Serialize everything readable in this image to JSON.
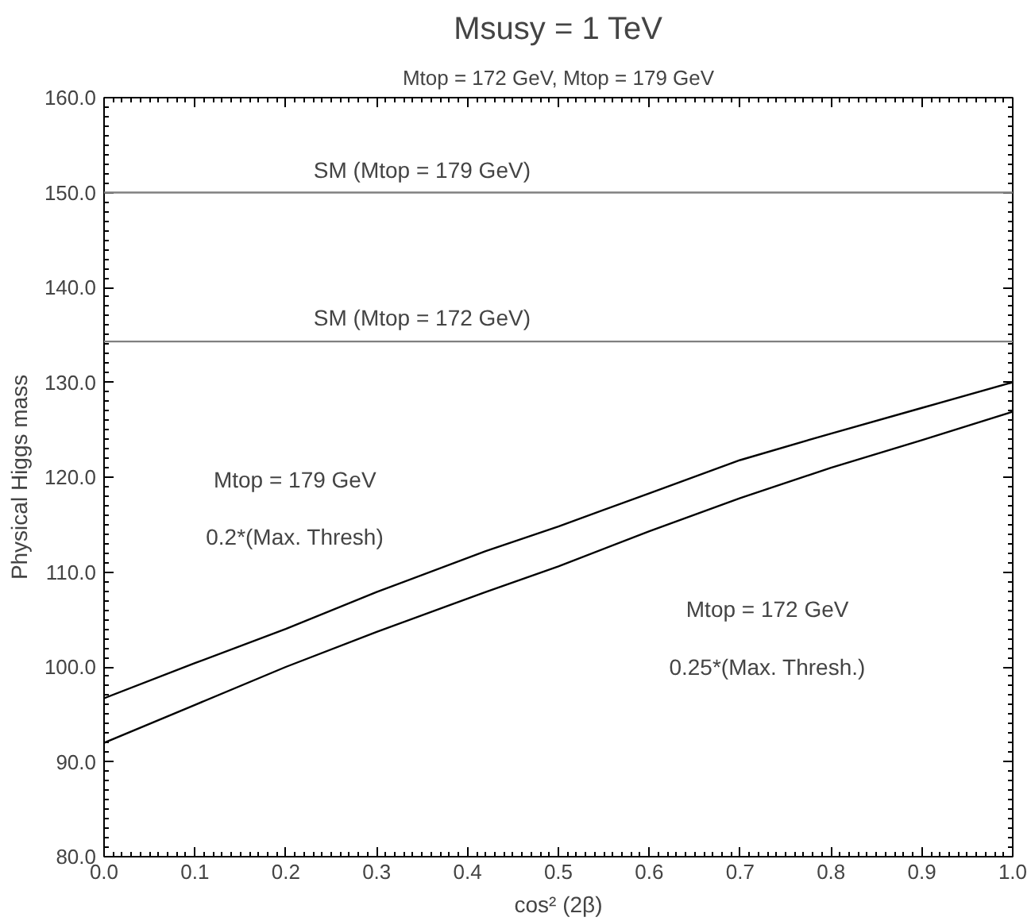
{
  "chart_data": {
    "type": "line",
    "title": "Msusy = 1 TeV",
    "subtitle": "Mtop = 172 GeV, Mtop = 179 GeV",
    "xlabel": "cos² (2β)",
    "ylabel": "Physical Higgs mass",
    "x": [
      0.0,
      0.1,
      0.2,
      0.3,
      0.42,
      0.5,
      0.6,
      0.7,
      0.8,
      0.9,
      1.0
    ],
    "series": [
      {
        "color": "#000000",
        "values": [
          96.7,
          100.4,
          104.0,
          107.9,
          112.2,
          114.8,
          118.3,
          121.8,
          124.6,
          127.3,
          130.0
        ]
      },
      {
        "color": "#000000",
        "values": [
          92.0,
          96.0,
          100.0,
          103.7,
          107.9,
          110.6,
          114.3,
          117.8,
          121.0,
          123.9,
          126.9
        ]
      }
    ],
    "ref_lines": [
      {
        "axis": "y",
        "value": 150.0,
        "color": "#808080"
      },
      {
        "axis": "y",
        "value": 134.3,
        "color": "#808080"
      }
    ],
    "annotations": [
      "SM (Mtop = 179 GeV)",
      "SM (Mtop = 172 GeV)",
      "Mtop = 179 GeV",
      "0.2*(Max. Thresh)",
      "Mtop = 172 GeV",
      "0.25*(Max. Thresh.)"
    ],
    "xlim": [
      0.0,
      1.0
    ],
    "ylim": [
      80.0,
      160.0
    ],
    "xticks": [
      {
        "value": 0.0,
        "label": "0.0"
      },
      0.1,
      0.2,
      0.3,
      0.4,
      0.5,
      0.6,
      0.7,
      0.8,
      0.9,
      {
        "value": 1.0,
        "label": "1.0"
      }
    ],
    "yticks": [
      {
        "value": 80,
        "label": "80.0"
      },
      {
        "value": 90,
        "label": "90.0"
      },
      {
        "value": 100,
        "label": "100.0"
      },
      {
        "value": 110,
        "label": "110.0"
      },
      {
        "value": 120,
        "label": "120.0"
      },
      {
        "value": 130,
        "label": "130.0"
      },
      {
        "value": 140,
        "label": "140.0"
      },
      {
        "value": 150,
        "label": "150.0"
      },
      {
        "value": 160,
        "label": "160.0"
      }
    ],
    "grid": false,
    "marker": "none",
    "line_style": "solid"
  }
}
